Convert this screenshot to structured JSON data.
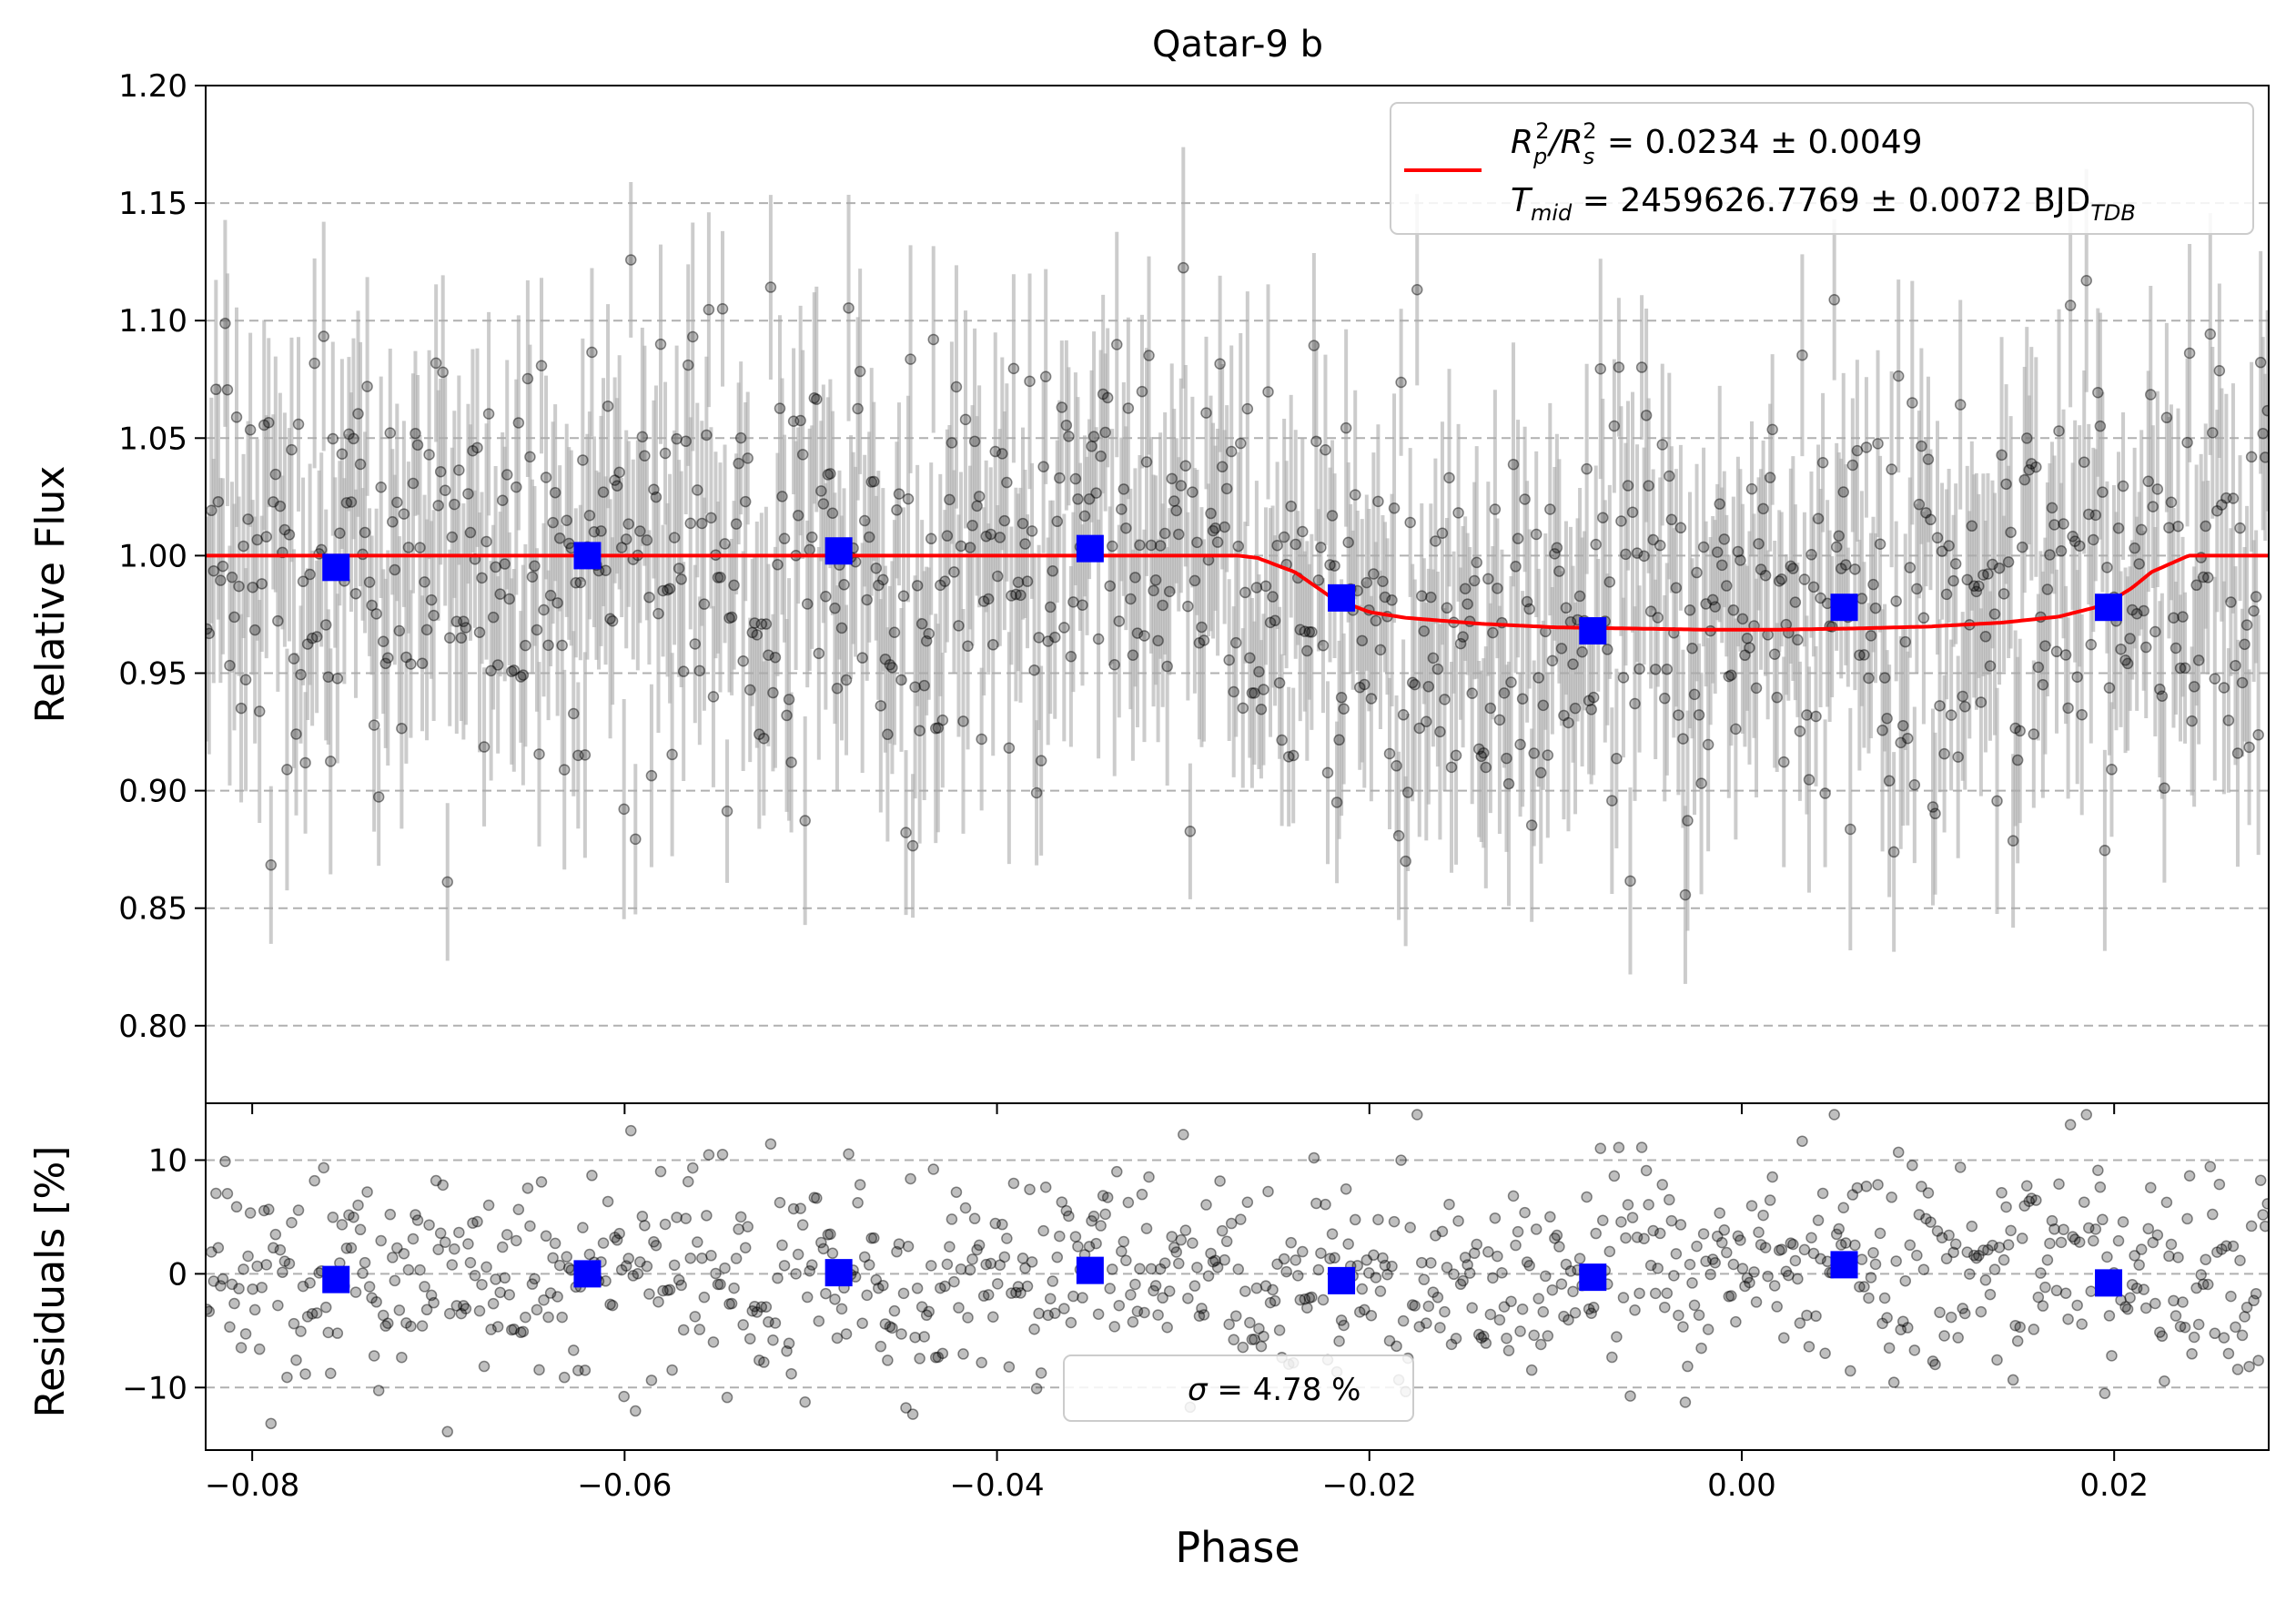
{
  "chart_data": [
    {
      "type": "scatter",
      "title": "Qatar-9 b",
      "xlabel": "",
      "ylabel": "Relative Flux",
      "xlim": [
        -0.0825,
        0.0283
      ],
      "ylim": [
        0.767,
        1.2
      ],
      "x_ticks": [
        -0.08,
        -0.06,
        -0.04,
        -0.02,
        0.0,
        0.02
      ],
      "y_ticks": [
        0.8,
        0.85,
        0.9,
        0.95,
        1.0,
        1.05,
        1.1,
        1.15,
        1.2
      ],
      "y_tick_labels": [
        "0.80",
        "0.85",
        "0.90",
        "0.95",
        "1.00",
        "1.05",
        "1.10",
        "1.15",
        "1.20"
      ],
      "grid": "horizontal dashed",
      "legend_position": "top-right",
      "legend": {
        "line1_main": "R",
        "line1_sub1": "p",
        "line1_sup1": "2",
        "line1_mid": "/R",
        "line1_sub2": "s",
        "line1_sup2": "2",
        "line1_tail": " = 0.0234 ± 0.0049",
        "line2_main": "T",
        "line2_sub": "mid",
        "line2_tail": " = 2459626.7769 ± 0.0072 BJD",
        "line2_sub2": "TDB"
      },
      "colors": {
        "raw": "#000000",
        "errorbar": "#aaaaaa",
        "binned": "#0000ff",
        "model": "#ff0000"
      },
      "raw_points": {
        "n": 900,
        "flux_scatter_sigma": 0.0478,
        "typical_error": 0.04
      },
      "binned": {
        "x": [
          -0.0755,
          -0.062,
          -0.0485,
          -0.035,
          -0.0215,
          -0.008,
          0.0055,
          0.0197
        ],
        "y": [
          0.995,
          1.0,
          1.002,
          1.003,
          0.982,
          0.968,
          0.978,
          0.978
        ]
      },
      "model": {
        "x": [
          -0.0825,
          -0.03,
          -0.027,
          -0.026,
          -0.024,
          -0.022,
          -0.02,
          -0.018,
          -0.014,
          -0.01,
          -0.006,
          -0.002,
          0.002,
          0.006,
          0.01,
          0.014,
          0.017,
          0.019,
          0.02,
          0.021,
          0.022,
          0.024,
          0.0283
        ],
        "y": [
          1.0,
          1.0,
          1.0,
          0.999,
          0.993,
          0.982,
          0.976,
          0.9735,
          0.971,
          0.9695,
          0.969,
          0.9685,
          0.9685,
          0.969,
          0.9698,
          0.9715,
          0.974,
          0.978,
          0.9815,
          0.9865,
          0.993,
          1.0,
          1.0
        ]
      }
    },
    {
      "type": "scatter",
      "title": "",
      "xlabel": "Phase",
      "ylabel": "Residuals [%]",
      "xlim": [
        -0.0825,
        0.0283
      ],
      "ylim": [
        -15.5,
        15.0
      ],
      "x_ticks": [
        -0.08,
        -0.06,
        -0.04,
        -0.02,
        0.0,
        0.02
      ],
      "x_tick_labels": [
        "−0.08",
        "−0.06",
        "−0.04",
        "−0.02",
        "0.00",
        "0.02"
      ],
      "y_ticks": [
        -10,
        0,
        10
      ],
      "y_tick_labels": [
        "−10",
        "0",
        "10"
      ],
      "grid": "horizontal dashed",
      "legend_position": "bottom-center",
      "legend": {
        "sigma_symbol": "σ",
        "sigma_text": " = 4.78 %"
      },
      "binned": {
        "x": [
          -0.0755,
          -0.062,
          -0.0485,
          -0.035,
          -0.0215,
          -0.008,
          0.0055,
          0.0197
        ],
        "y": [
          -0.5,
          0.0,
          0.1,
          0.3,
          -0.6,
          -0.3,
          0.8,
          -0.8
        ]
      }
    }
  ]
}
